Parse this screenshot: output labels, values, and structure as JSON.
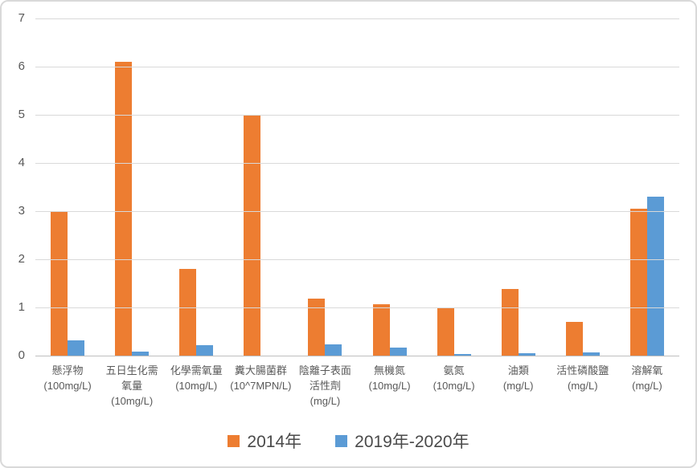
{
  "chart_data": {
    "type": "bar",
    "title": "",
    "categories": [
      "懸浮物\n(100mg/L)",
      "五日生化需\n氧量\n(10mg/L)",
      "化學需氧量\n(10mg/L)",
      "糞大腸菌群\n(10^7MPN/L)",
      "陰離子表面\n活性劑\n(mg/L)",
      "無機氮\n(10mg/L)",
      "氨氮\n(10mg/L)",
      "油類\n(mg/L)",
      "活性磷酸鹽\n(mg/L)",
      "溶解氧\n(mg/L)"
    ],
    "series": [
      {
        "name": "2014年",
        "color": "#ED7D31",
        "values": [
          3.0,
          6.1,
          1.8,
          5.0,
          1.18,
          1.07,
          1.0,
          1.38,
          0.7,
          3.05
        ]
      },
      {
        "name": "2019年-2020年",
        "color": "#5B9BD5",
        "values": [
          0.32,
          0.08,
          0.22,
          0,
          0.24,
          0.17,
          0.03,
          0.05,
          0.07,
          3.3
        ]
      }
    ],
    "xlabel": "",
    "ylabel": "",
    "ylim": [
      0,
      7
    ],
    "ytick_step": 1,
    "yticks": [
      0,
      1,
      2,
      3,
      4,
      5,
      6,
      7
    ],
    "grid": true,
    "legend_position": "bottom"
  },
  "colors": {
    "gridline": "#D9D9D9",
    "axis_line": "#BFBFBF",
    "axis_text": "#595959",
    "legend_text": "#4A4A4A",
    "background": "#FFFFFF",
    "border": "#D9D9D9"
  }
}
